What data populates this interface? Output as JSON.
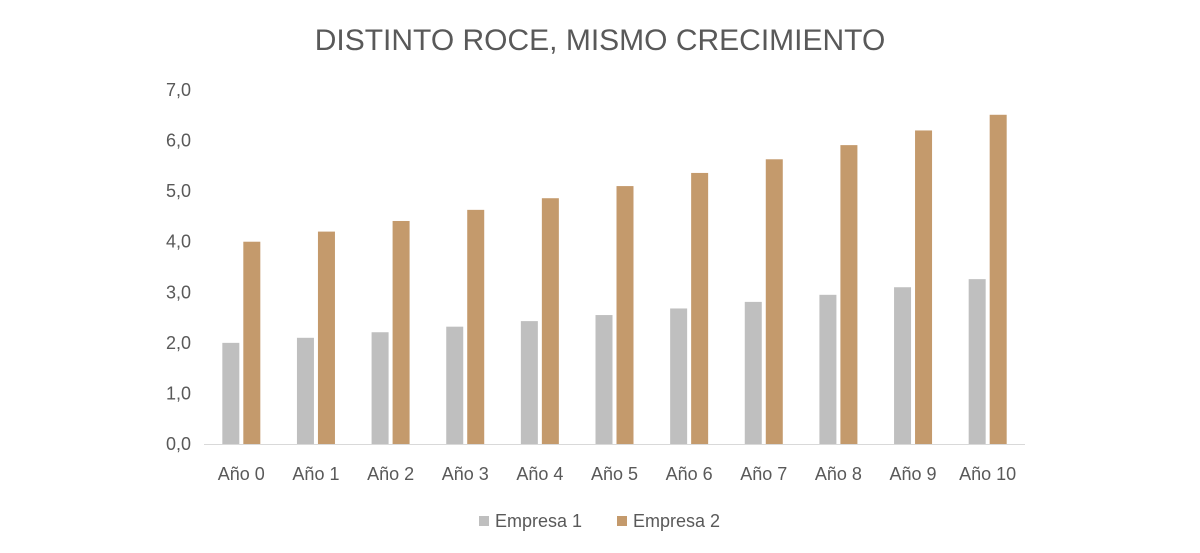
{
  "chart_data": {
    "type": "bar",
    "title": "DISTINTO ROCE, MISMO CRECIMIENTO",
    "xlabel": "",
    "ylabel": "",
    "categories": [
      "Año 0",
      "Año 1",
      "Año 2",
      "Año 3",
      "Año 4",
      "Año 5",
      "Año 6",
      "Año 7",
      "Año 8",
      "Año 9",
      "Año 10"
    ],
    "series": [
      {
        "name": "Empresa 1",
        "color": "#bfbfbf",
        "values": [
          2.0,
          2.1,
          2.21,
          2.32,
          2.43,
          2.55,
          2.68,
          2.81,
          2.95,
          3.1,
          3.26
        ]
      },
      {
        "name": "Empresa 2",
        "color": "#c49a6c",
        "values": [
          4.0,
          4.2,
          4.41,
          4.63,
          4.86,
          5.1,
          5.36,
          5.63,
          5.91,
          6.2,
          6.51
        ]
      }
    ],
    "ylim": [
      0,
      7
    ],
    "yticks": [
      "0,0",
      "1,0",
      "2,0",
      "3,0",
      "4,0",
      "5,0",
      "6,0",
      "7,0"
    ],
    "grid": false,
    "legend": "bottom"
  }
}
